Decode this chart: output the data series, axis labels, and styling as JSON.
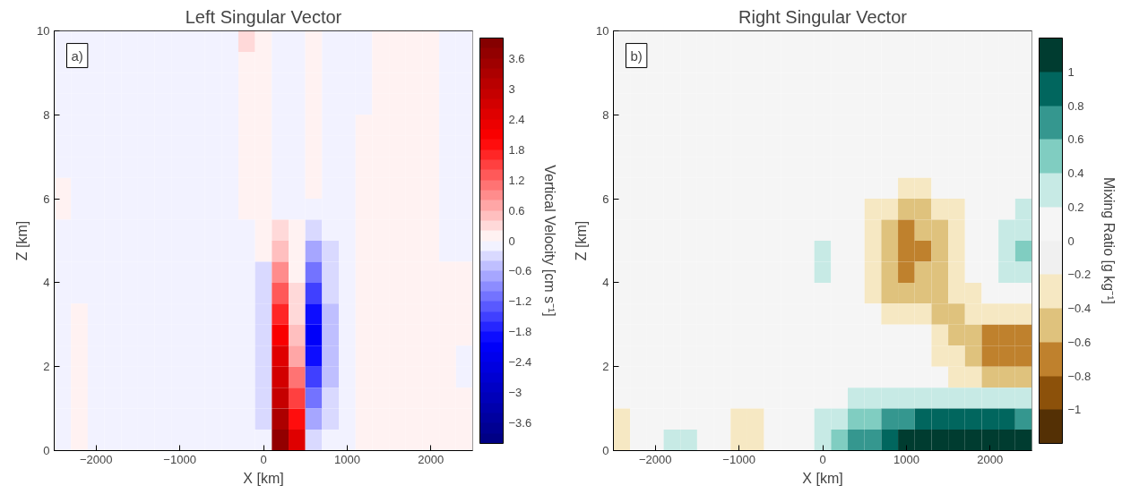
{
  "chart_data": [
    {
      "type": "heatmap",
      "title": "Left Singular Vector",
      "xlabel": "X [km]",
      "ylabel": "Z [km]",
      "clabel": "Vertical Velocity [cm s⁻¹]",
      "annotations": [
        "a)"
      ],
      "xlim": [
        -2500,
        2500
      ],
      "xticks": [
        -2000,
        -1000,
        0,
        1000,
        2000
      ],
      "ylim": [
        0,
        10
      ],
      "yticks": [
        0,
        2,
        4,
        6,
        8,
        10
      ],
      "clim": [
        -4,
        4
      ],
      "cticks": [
        -3.6,
        -3,
        -2.4,
        -1.8,
        -1.2,
        -0.6,
        0,
        0.6,
        1.2,
        1.8,
        2.4,
        3,
        3.6
      ],
      "colors": [
        "#000085",
        "#000092",
        "#00009f",
        "#0000ac",
        "#0000b9",
        "#0000c5",
        "#0000d2",
        "#0000df",
        "#0000ec",
        "#0000f9",
        "#0d0dff",
        "#2626ff",
        "#4040ff",
        "#5959ff",
        "#7373ff",
        "#8c8cff",
        "#a6a6ff",
        "#bfbfff",
        "#d9d9ff",
        "#f2f2ff",
        "#fff2f2",
        "#ffd9d9",
        "#ffbfbf",
        "#ffa6a6",
        "#ff8c8c",
        "#ff7373",
        "#ff5959",
        "#ff4040",
        "#ff2626",
        "#ff0d0d",
        "#f90000",
        "#ec0000",
        "#df0000",
        "#d20000",
        "#c50000",
        "#b90000",
        "#ac0000",
        "#9f0000",
        "#920000",
        "#850000"
      ],
      "cells": [
        [
          -0.1,
          -0.1,
          -0.1,
          -0.1,
          -0.1,
          -0.1,
          -0.1,
          -0.1,
          -0.1,
          -0.1,
          -0.1,
          0.3,
          0.1,
          -0.1,
          -0.1,
          0.1,
          -0.1,
          -0.1,
          -0.1,
          0.1,
          0.1,
          0.1,
          0.1,
          -0.1,
          -0.1
        ],
        [
          -0.1,
          -0.1,
          -0.1,
          -0.1,
          -0.1,
          -0.1,
          -0.1,
          -0.1,
          -0.1,
          -0.1,
          -0.1,
          0.1,
          0.1,
          -0.1,
          -0.1,
          0.1,
          -0.1,
          -0.1,
          -0.1,
          0.1,
          0.1,
          0.1,
          0.1,
          -0.1,
          -0.1
        ],
        [
          -0.1,
          -0.1,
          -0.1,
          -0.1,
          -0.1,
          -0.1,
          -0.1,
          -0.1,
          -0.1,
          -0.1,
          -0.1,
          0.1,
          0.1,
          -0.1,
          -0.1,
          0.1,
          -0.1,
          -0.1,
          -0.1,
          0.1,
          0.1,
          0.1,
          0.1,
          -0.1,
          -0.1
        ],
        [
          -0.1,
          -0.1,
          -0.1,
          -0.1,
          -0.1,
          -0.1,
          -0.1,
          -0.1,
          -0.1,
          -0.1,
          -0.1,
          0.1,
          0.1,
          -0.1,
          -0.1,
          0.1,
          -0.1,
          -0.1,
          -0.1,
          0.1,
          0.1,
          0.1,
          0.1,
          -0.1,
          -0.1
        ],
        [
          -0.1,
          -0.1,
          -0.1,
          -0.1,
          -0.1,
          -0.1,
          -0.1,
          -0.1,
          -0.1,
          -0.1,
          -0.1,
          0.1,
          0.1,
          -0.1,
          -0.1,
          0.1,
          -0.1,
          -0.1,
          0.1,
          0.1,
          0.1,
          0.1,
          0.1,
          -0.1,
          -0.1
        ],
        [
          -0.1,
          -0.1,
          -0.1,
          -0.1,
          -0.1,
          -0.1,
          -0.1,
          -0.1,
          -0.1,
          -0.1,
          -0.1,
          0.1,
          0.1,
          -0.1,
          -0.1,
          0.1,
          -0.1,
          -0.1,
          0.1,
          0.1,
          0.1,
          0.1,
          0.1,
          -0.1,
          -0.1
        ],
        [
          -0.1,
          -0.1,
          -0.1,
          -0.1,
          -0.1,
          -0.1,
          -0.1,
          -0.1,
          -0.1,
          -0.1,
          -0.1,
          0.1,
          0.1,
          -0.1,
          -0.1,
          0.1,
          -0.1,
          -0.1,
          0.1,
          0.1,
          0.1,
          0.1,
          0.1,
          -0.1,
          -0.1
        ],
        [
          0.1,
          -0.1,
          -0.1,
          -0.1,
          -0.1,
          -0.1,
          -0.1,
          -0.1,
          -0.1,
          -0.1,
          -0.1,
          0.1,
          0.1,
          -0.1,
          -0.1,
          0.1,
          -0.1,
          -0.1,
          0.1,
          0.1,
          0.1,
          0.1,
          0.1,
          -0.1,
          -0.1
        ],
        [
          0.1,
          -0.1,
          -0.1,
          -0.1,
          -0.1,
          -0.1,
          -0.1,
          -0.1,
          -0.1,
          -0.1,
          -0.1,
          0.1,
          0.1,
          -0.1,
          -0.1,
          -0.1,
          -0.1,
          -0.1,
          0.1,
          0.1,
          0.1,
          0.1,
          0.1,
          -0.1,
          -0.1
        ],
        [
          -0.1,
          -0.1,
          -0.1,
          -0.1,
          -0.1,
          -0.1,
          -0.1,
          -0.1,
          -0.1,
          -0.1,
          -0.1,
          -0.1,
          0.1,
          0.3,
          0.1,
          -0.3,
          -0.1,
          -0.1,
          0.1,
          0.1,
          0.1,
          0.1,
          0.1,
          -0.1,
          -0.1
        ],
        [
          -0.1,
          -0.1,
          -0.1,
          -0.1,
          -0.1,
          -0.1,
          -0.1,
          -0.1,
          -0.1,
          -0.1,
          -0.1,
          -0.1,
          0.1,
          0.5,
          0.1,
          -0.7,
          -0.3,
          -0.1,
          0.1,
          0.1,
          0.1,
          0.1,
          0.1,
          -0.1,
          -0.1
        ],
        [
          -0.1,
          -0.1,
          -0.1,
          -0.1,
          -0.1,
          -0.1,
          -0.1,
          -0.1,
          -0.1,
          -0.1,
          -0.1,
          -0.1,
          -0.3,
          0.9,
          0.1,
          -1.1,
          -0.3,
          -0.1,
          0.1,
          0.1,
          0.1,
          0.1,
          0.1,
          0.1,
          0.1
        ],
        [
          -0.1,
          -0.1,
          -0.1,
          -0.1,
          -0.1,
          -0.1,
          -0.1,
          -0.1,
          -0.1,
          -0.1,
          -0.1,
          -0.1,
          -0.3,
          1.3,
          0.3,
          -1.5,
          -0.3,
          -0.1,
          0.1,
          0.1,
          0.1,
          0.1,
          0.1,
          0.1,
          0.1
        ],
        [
          -0.1,
          0.1,
          -0.1,
          -0.1,
          -0.1,
          -0.1,
          -0.1,
          -0.1,
          -0.1,
          -0.1,
          -0.1,
          -0.1,
          -0.3,
          1.7,
          0.3,
          -1.9,
          -0.5,
          -0.1,
          0.1,
          0.1,
          0.1,
          0.1,
          0.1,
          0.1,
          0.1
        ],
        [
          -0.1,
          0.1,
          -0.1,
          -0.1,
          -0.1,
          -0.1,
          -0.1,
          -0.1,
          -0.1,
          -0.1,
          -0.1,
          -0.1,
          -0.3,
          2.1,
          0.5,
          -2.1,
          -0.5,
          -0.1,
          0.1,
          0.1,
          0.1,
          0.1,
          0.1,
          0.1,
          0.1
        ],
        [
          -0.1,
          0.1,
          -0.1,
          -0.1,
          -0.1,
          -0.1,
          -0.1,
          -0.1,
          -0.1,
          -0.1,
          -0.1,
          -0.1,
          -0.3,
          2.5,
          0.7,
          -1.9,
          -0.5,
          -0.1,
          0.1,
          0.1,
          0.1,
          0.1,
          0.1,
          0.1,
          -0.1
        ],
        [
          -0.1,
          0.1,
          -0.1,
          -0.1,
          -0.1,
          -0.1,
          -0.1,
          -0.1,
          -0.1,
          -0.1,
          -0.1,
          -0.1,
          -0.3,
          2.7,
          1.1,
          -1.5,
          -0.5,
          -0.1,
          0.1,
          0.1,
          0.1,
          0.1,
          0.1,
          0.1,
          -0.1
        ],
        [
          -0.1,
          0.1,
          -0.1,
          -0.1,
          -0.1,
          -0.1,
          -0.1,
          -0.1,
          -0.1,
          -0.1,
          -0.1,
          -0.1,
          -0.3,
          2.9,
          1.5,
          -1.1,
          -0.3,
          -0.1,
          0.1,
          0.1,
          0.1,
          0.1,
          0.1,
          0.1,
          0.1
        ],
        [
          -0.1,
          0.1,
          -0.1,
          -0.1,
          -0.1,
          -0.1,
          -0.1,
          -0.1,
          -0.1,
          -0.1,
          -0.1,
          -0.1,
          -0.3,
          3.3,
          1.9,
          -0.7,
          -0.3,
          -0.1,
          0.1,
          0.1,
          0.1,
          0.1,
          0.1,
          0.1,
          0.1
        ],
        [
          -0.1,
          0.1,
          -0.1,
          -0.1,
          -0.1,
          -0.1,
          -0.1,
          -0.1,
          -0.1,
          -0.1,
          -0.1,
          -0.1,
          -0.1,
          3.7,
          2.5,
          -0.3,
          -0.1,
          -0.1,
          0.1,
          0.1,
          0.1,
          0.1,
          0.1,
          0.1,
          0.1
        ]
      ]
    },
    {
      "type": "heatmap",
      "title": "Right Singular Vector",
      "xlabel": "X [km]",
      "ylabel": "Z [km]",
      "clabel": "Mixing Ratio [g kg⁻¹]",
      "annotations": [
        "b)"
      ],
      "xlim": [
        -2500,
        2500
      ],
      "xticks": [
        -2000,
        -1000,
        0,
        1000,
        2000
      ],
      "ylim": [
        0,
        10
      ],
      "yticks": [
        0,
        2,
        4,
        6,
        8,
        10
      ],
      "clim": [
        -1.2,
        1.2
      ],
      "cticks": [
        -1,
        -0.8,
        -0.6,
        -0.4,
        -0.2,
        0,
        0.2,
        0.4,
        0.6,
        0.8,
        1
      ],
      "colors": [
        "#543005",
        "#8c510a",
        "#bf812d",
        "#dfc27d",
        "#f6e8c3",
        "#f0f0f0",
        "#f5f5f5",
        "#c7eae5",
        "#80cdc1",
        "#35978f",
        "#01665e",
        "#003c30"
      ],
      "cells": [
        [
          0.1,
          0.1,
          0.1,
          0.1,
          0.1,
          0.1,
          0.1,
          0.1,
          0.1,
          0.1,
          0.1,
          0.1,
          0.1,
          0.1,
          0.1,
          0.1,
          0.1,
          0.1,
          0.1,
          0.1,
          0.1,
          0.1,
          0.1,
          0.1,
          0.1
        ],
        [
          0.1,
          0.1,
          0.1,
          0.1,
          0.1,
          0.1,
          0.1,
          0.1,
          0.1,
          0.1,
          0.1,
          0.1,
          0.1,
          0.1,
          0.1,
          0.1,
          0.1,
          0.1,
          0.1,
          0.1,
          0.1,
          0.1,
          0.1,
          0.1,
          0.1
        ],
        [
          0.1,
          0.1,
          0.1,
          0.1,
          0.1,
          0.1,
          0.1,
          0.1,
          0.1,
          0.1,
          0.1,
          0.1,
          0.1,
          0.1,
          0.1,
          0.1,
          0.1,
          0.1,
          0.1,
          0.1,
          0.1,
          0.1,
          0.1,
          0.1,
          0.1
        ],
        [
          0.1,
          0.1,
          0.1,
          0.1,
          0.1,
          0.1,
          0.1,
          0.1,
          0.1,
          0.1,
          0.1,
          0.1,
          0.1,
          0.1,
          0.1,
          0.1,
          0.1,
          0.1,
          0.1,
          0.1,
          0.1,
          0.1,
          0.1,
          0.1,
          0.1
        ],
        [
          0.1,
          0.1,
          0.1,
          0.1,
          0.1,
          0.1,
          0.1,
          0.1,
          0.1,
          0.1,
          0.1,
          0.1,
          0.1,
          0.1,
          0.1,
          0.1,
          0.1,
          0.1,
          0.1,
          0.1,
          0.1,
          0.1,
          0.1,
          0.1,
          0.1
        ],
        [
          0.1,
          0.1,
          0.1,
          0.1,
          0.1,
          0.1,
          0.1,
          0.1,
          0.1,
          0.1,
          0.1,
          0.1,
          0.1,
          0.1,
          0.1,
          0.1,
          0.1,
          0.1,
          0.1,
          0.1,
          0.1,
          0.1,
          0.1,
          0.1,
          0.1
        ],
        [
          0.1,
          0.1,
          0.1,
          0.1,
          0.1,
          0.1,
          0.1,
          0.1,
          0.1,
          0.1,
          0.1,
          0.1,
          0.1,
          0.1,
          0.1,
          0.1,
          0.1,
          0.1,
          0.1,
          0.1,
          0.1,
          0.1,
          0.1,
          0.1,
          0.1
        ],
        [
          0.1,
          0.1,
          0.1,
          0.1,
          0.1,
          0.1,
          0.1,
          0.1,
          0.1,
          0.1,
          0.1,
          0.1,
          0.1,
          0.1,
          0.1,
          0.1,
          0.1,
          -0.3,
          -0.3,
          0.1,
          0.1,
          0.1,
          0.1,
          0.1,
          0.1
        ],
        [
          0.1,
          0.1,
          0.1,
          0.1,
          0.1,
          0.1,
          0.1,
          0.1,
          0.1,
          0.1,
          0.1,
          0.1,
          0.1,
          0.1,
          0.1,
          -0.3,
          -0.3,
          -0.5,
          -0.5,
          -0.3,
          -0.3,
          0.1,
          0.1,
          0.1,
          0.3
        ],
        [
          0.1,
          0.1,
          0.1,
          0.1,
          0.1,
          0.1,
          0.1,
          0.1,
          0.1,
          0.1,
          0.1,
          0.1,
          0.1,
          0.1,
          0.1,
          -0.3,
          -0.5,
          -0.7,
          -0.5,
          -0.5,
          -0.3,
          0.1,
          0.1,
          0.3,
          0.3
        ],
        [
          0.1,
          0.1,
          0.1,
          0.1,
          0.1,
          0.1,
          0.1,
          0.1,
          0.1,
          0.1,
          0.1,
          0.1,
          0.3,
          0.1,
          0.1,
          -0.3,
          -0.5,
          -0.7,
          -0.7,
          -0.5,
          -0.3,
          0.1,
          0.1,
          0.3,
          0.5
        ],
        [
          0.1,
          0.1,
          0.1,
          0.1,
          0.1,
          0.1,
          0.1,
          0.1,
          0.1,
          0.1,
          0.1,
          0.1,
          0.3,
          0.1,
          0.1,
          -0.3,
          -0.5,
          -0.7,
          -0.5,
          -0.5,
          -0.3,
          0.1,
          0.1,
          0.3,
          0.3
        ],
        [
          0.1,
          0.1,
          0.1,
          0.1,
          0.1,
          0.1,
          0.1,
          0.1,
          0.1,
          0.1,
          0.1,
          0.1,
          0.1,
          0.1,
          0.1,
          -0.3,
          -0.5,
          -0.5,
          -0.5,
          -0.5,
          -0.3,
          -0.3,
          0.1,
          0.1,
          0.1
        ],
        [
          0.1,
          0.1,
          0.1,
          0.1,
          0.1,
          0.1,
          0.1,
          0.1,
          0.1,
          0.1,
          0.1,
          0.1,
          0.1,
          0.1,
          0.1,
          0.1,
          -0.3,
          -0.3,
          -0.3,
          -0.5,
          -0.5,
          -0.3,
          -0.3,
          -0.3,
          -0.3
        ],
        [
          0.1,
          0.1,
          0.1,
          0.1,
          0.1,
          0.1,
          0.1,
          0.1,
          0.1,
          0.1,
          0.1,
          0.1,
          0.1,
          0.1,
          0.1,
          0.1,
          0.1,
          0.1,
          0.1,
          -0.3,
          -0.5,
          -0.5,
          -0.7,
          -0.7,
          -0.7
        ],
        [
          0.1,
          0.1,
          0.1,
          0.1,
          0.1,
          0.1,
          0.1,
          0.1,
          0.1,
          0.1,
          0.1,
          0.1,
          0.1,
          0.1,
          0.1,
          0.1,
          0.1,
          0.1,
          0.1,
          -0.3,
          -0.3,
          -0.5,
          -0.7,
          -0.7,
          -0.7
        ],
        [
          0.1,
          0.1,
          0.1,
          0.1,
          0.1,
          0.1,
          0.1,
          0.1,
          0.1,
          0.1,
          0.1,
          0.1,
          0.1,
          0.1,
          0.1,
          0.1,
          0.1,
          0.1,
          0.1,
          0.1,
          -0.3,
          -0.3,
          -0.5,
          -0.5,
          -0.5
        ],
        [
          0.1,
          0.1,
          0.1,
          0.1,
          0.1,
          0.1,
          0.1,
          0.1,
          0.1,
          0.1,
          0.1,
          0.1,
          0.1,
          0.1,
          0.3,
          0.3,
          0.3,
          0.3,
          0.3,
          0.3,
          0.3,
          0.3,
          0.3,
          0.3,
          0.3
        ],
        [
          -0.3,
          0.1,
          0.1,
          0.1,
          0.1,
          0.1,
          0.1,
          -0.3,
          -0.3,
          0.1,
          0.1,
          0.1,
          0.3,
          0.3,
          0.5,
          0.5,
          0.7,
          0.7,
          0.9,
          0.9,
          0.9,
          0.9,
          0.9,
          0.9,
          0.7
        ],
        [
          -0.3,
          0.1,
          0.1,
          0.3,
          0.3,
          0.1,
          0.1,
          -0.3,
          -0.3,
          0.1,
          0.1,
          0.1,
          0.3,
          0.5,
          0.7,
          0.7,
          0.9,
          1.1,
          1.1,
          1.1,
          1.1,
          1.1,
          1.1,
          1.1,
          1.1
        ]
      ]
    }
  ]
}
